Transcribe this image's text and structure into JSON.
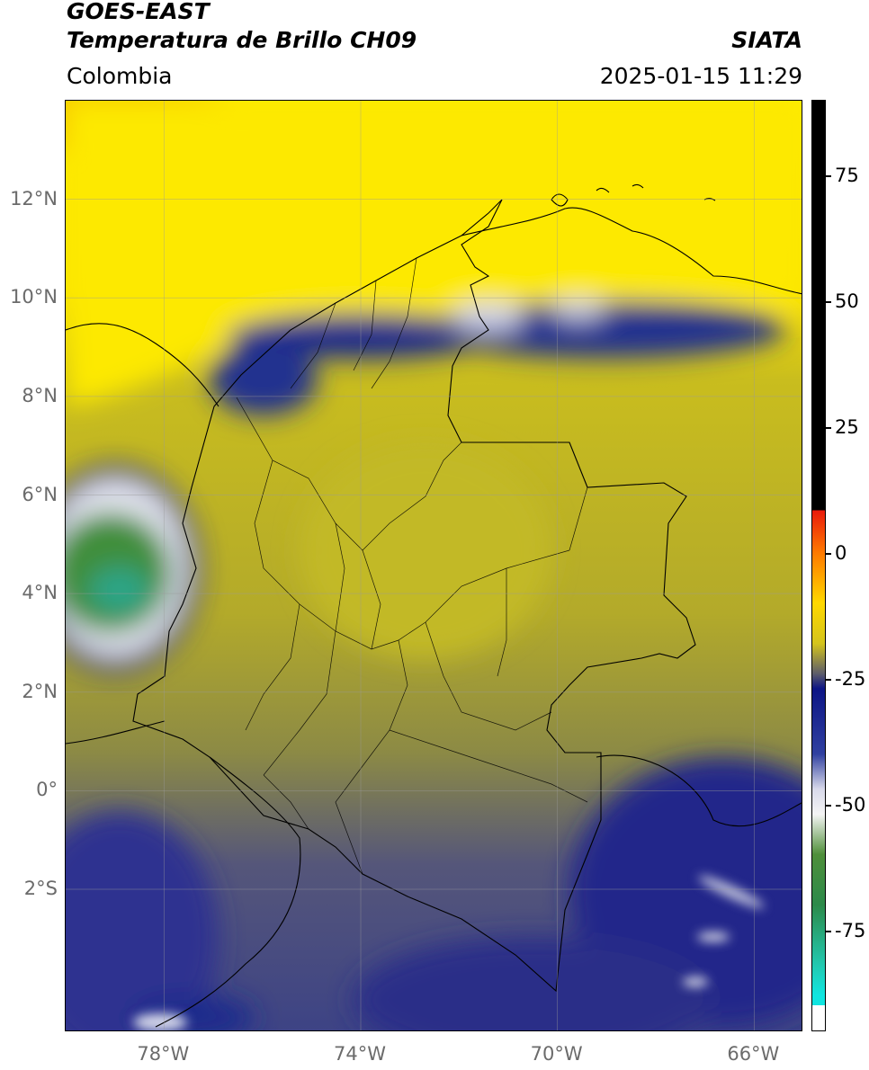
{
  "header": {
    "satellite": "GOES-EAST",
    "product": "Temperatura de Brillo CH09",
    "brand": "SIATA",
    "region": "Colombia",
    "timestamp": "2025-01-15 11:29"
  },
  "map": {
    "lat_labels": [
      "12°N",
      "10°N",
      "8°N",
      "6°N",
      "4°N",
      "2°N",
      "0°",
      "2°S"
    ],
    "lat_values": [
      12,
      10,
      8,
      6,
      4,
      2,
      0,
      -2
    ],
    "lon_labels": [
      "78°W",
      "74°W",
      "70°W",
      "66°W"
    ],
    "lon_values": [
      -78,
      -74,
      -70,
      -66
    ],
    "extent": {
      "lon_min": -80,
      "lon_max": -65,
      "lat_min": -4.9,
      "lat_max": 14
    }
  },
  "colorbar": {
    "tick_labels": [
      "75",
      "50",
      "25",
      "0",
      "-25",
      "-50",
      "-75"
    ],
    "tick_values": [
      75,
      50,
      25,
      0,
      -25,
      -50,
      -75
    ],
    "range": [
      -95,
      90
    ]
  }
}
